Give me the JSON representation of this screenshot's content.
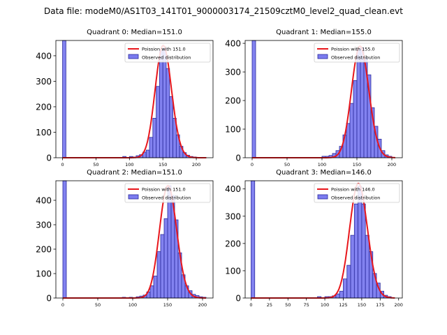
{
  "suptitle": "Data file: modeM0/AS1T03_141T01_9000003174_21509cztM0_level2_quad_clean.evt",
  "legend_labels": {
    "poisson_prefix": "Poission with ",
    "observed": "Observed distribution"
  },
  "colors": {
    "bar_fill": "#7b7bef",
    "bar_edge": "#2b2b9c",
    "curve": "#e8161b",
    "axis": "#000000"
  },
  "chart_data": [
    {
      "type": "bar",
      "title": "Quadrant 0: Median=151.0",
      "median": 151.0,
      "poisson_label": "151.0",
      "xlim": [
        -10,
        225
      ],
      "ylim": [
        0,
        460
      ],
      "xticks": [
        0,
        50,
        100,
        150,
        200
      ],
      "yticks": [
        0,
        100,
        200,
        300,
        400
      ],
      "bin_width": 5,
      "bins": [
        [
          0,
          460
        ],
        [
          90,
          5
        ],
        [
          100,
          5
        ],
        [
          105,
          3
        ],
        [
          110,
          8
        ],
        [
          115,
          12
        ],
        [
          120,
          22
        ],
        [
          125,
          30
        ],
        [
          130,
          80
        ],
        [
          135,
          155
        ],
        [
          140,
          280
        ],
        [
          145,
          420
        ],
        [
          150,
          430
        ],
        [
          155,
          350
        ],
        [
          160,
          240
        ],
        [
          165,
          155
        ],
        [
          170,
          90
        ],
        [
          175,
          45
        ],
        [
          180,
          20
        ],
        [
          185,
          10
        ],
        [
          190,
          5
        ],
        [
          195,
          3
        ]
      ],
      "curve_scale": 440,
      "curve_range": [
        0,
        215
      ]
    },
    {
      "type": "bar",
      "title": "Quadrant 1: Median=155.0",
      "median": 155.0,
      "poisson_label": "155.0",
      "xlim": [
        -10,
        215
      ],
      "ylim": [
        0,
        410
      ],
      "xticks": [
        0,
        50,
        100,
        150,
        200
      ],
      "yticks": [
        0,
        100,
        200,
        300,
        400
      ],
      "bin_width": 5,
      "bins": [
        [
          0,
          410
        ],
        [
          100,
          5
        ],
        [
          105,
          5
        ],
        [
          110,
          8
        ],
        [
          115,
          15
        ],
        [
          120,
          25
        ],
        [
          125,
          40
        ],
        [
          130,
          80
        ],
        [
          135,
          120
        ],
        [
          140,
          190
        ],
        [
          145,
          270
        ],
        [
          150,
          380
        ],
        [
          155,
          385
        ],
        [
          160,
          350
        ],
        [
          165,
          290
        ],
        [
          170,
          175
        ],
        [
          175,
          110
        ],
        [
          180,
          65
        ],
        [
          185,
          25
        ],
        [
          190,
          10
        ],
        [
          195,
          5
        ]
      ],
      "curve_scale": 390,
      "curve_range": [
        0,
        205
      ]
    },
    {
      "type": "bar",
      "title": "Quadrant 2: Median=151.0",
      "median": 151.0,
      "poisson_label": "151.0",
      "xlim": [
        -10,
        215
      ],
      "ylim": [
        0,
        480
      ],
      "xticks": [
        0,
        50,
        100,
        150,
        200
      ],
      "yticks": [
        0,
        100,
        200,
        300,
        400
      ],
      "bin_width": 5,
      "bins": [
        [
          0,
          480
        ],
        [
          85,
          3
        ],
        [
          95,
          3
        ],
        [
          105,
          5
        ],
        [
          110,
          8
        ],
        [
          115,
          12
        ],
        [
          120,
          25
        ],
        [
          125,
          50
        ],
        [
          130,
          90
        ],
        [
          135,
          190
        ],
        [
          140,
          260
        ],
        [
          145,
          325
        ],
        [
          150,
          460
        ],
        [
          155,
          420
        ],
        [
          160,
          320
        ],
        [
          165,
          185
        ],
        [
          170,
          95
        ],
        [
          175,
          50
        ],
        [
          180,
          30
        ],
        [
          185,
          15
        ],
        [
          190,
          10
        ],
        [
          195,
          5
        ],
        [
          200,
          3
        ]
      ],
      "curve_scale": 460,
      "curve_range": [
        0,
        205
      ]
    },
    {
      "type": "bar",
      "title": "Quadrant 3: Median=146.0",
      "median": 146.0,
      "poisson_label": "146.0",
      "xlim": [
        -8,
        205
      ],
      "ylim": [
        0,
        430
      ],
      "xticks": [
        0,
        25,
        50,
        75,
        100,
        125,
        150,
        175,
        200
      ],
      "yticks": [
        0,
        100,
        200,
        300,
        400
      ],
      "bin_width": 5,
      "bins": [
        [
          0,
          430
        ],
        [
          90,
          5
        ],
        [
          100,
          5
        ],
        [
          105,
          5
        ],
        [
          110,
          8
        ],
        [
          115,
          15
        ],
        [
          120,
          25
        ],
        [
          125,
          70
        ],
        [
          130,
          120
        ],
        [
          135,
          230
        ],
        [
          140,
          345
        ],
        [
          145,
          410
        ],
        [
          150,
          345
        ],
        [
          155,
          230
        ],
        [
          160,
          170
        ],
        [
          165,
          90
        ],
        [
          170,
          55
        ],
        [
          175,
          25
        ],
        [
          180,
          10
        ],
        [
          185,
          5
        ]
      ],
      "curve_scale": 420,
      "curve_range": [
        0,
        195
      ]
    }
  ]
}
